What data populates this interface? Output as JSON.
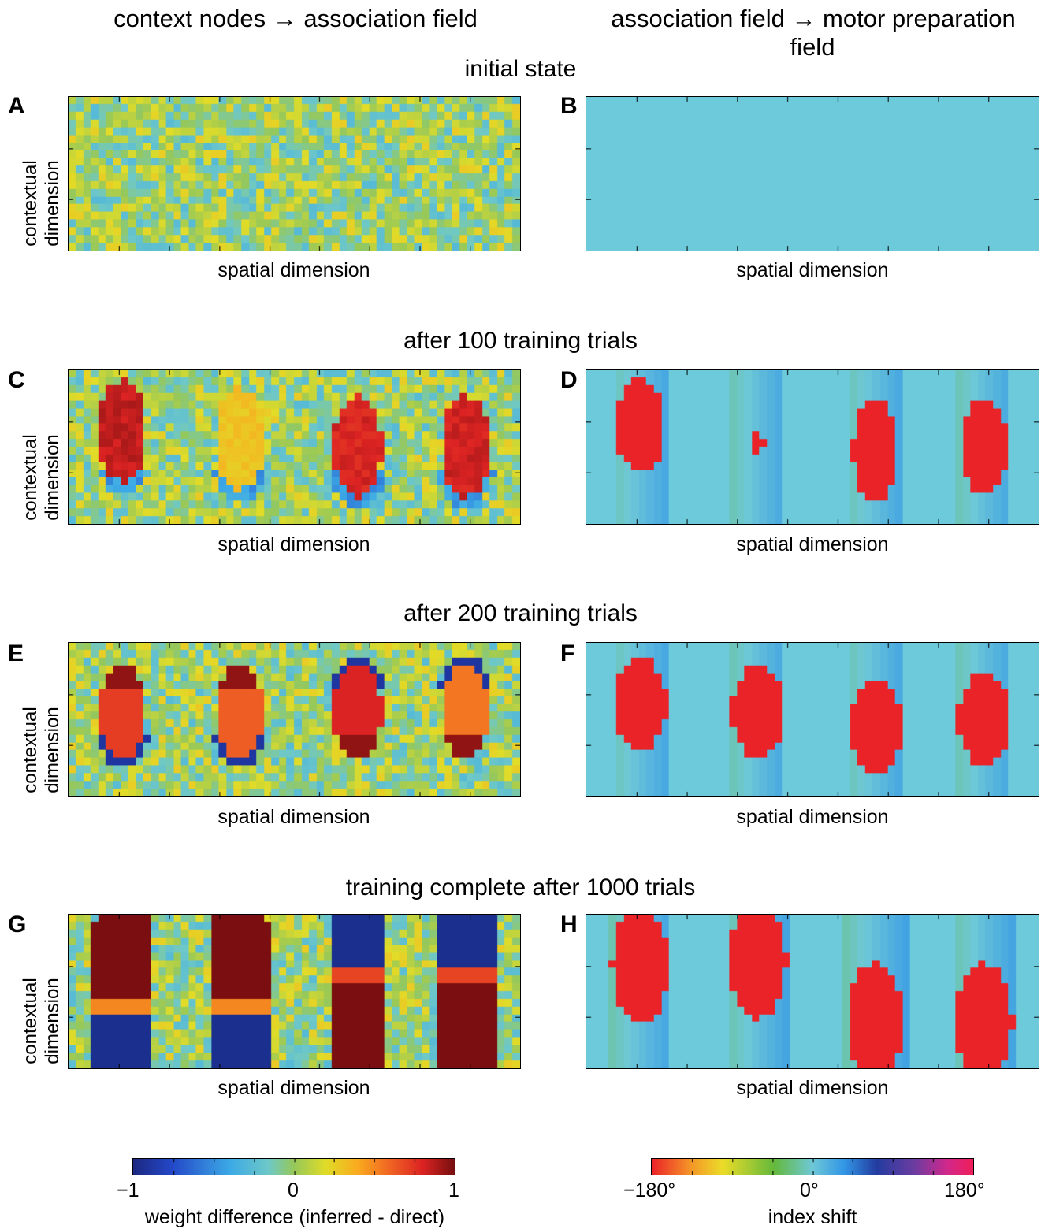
{
  "columns": {
    "left_title": "context nodes → association field",
    "right_title_line1": "association field → motor preparation",
    "right_title_line2": "field"
  },
  "rows": [
    {
      "title": "initial state",
      "left_letter": "A",
      "right_letter": "B"
    },
    {
      "title": "after 100 training trials",
      "left_letter": "C",
      "right_letter": "D"
    },
    {
      "title": "after 200 training trials",
      "left_letter": "E",
      "right_letter": "F"
    },
    {
      "title": "training complete after 1000 trials",
      "left_letter": "G",
      "right_letter": "H"
    }
  ],
  "axis_labels": {
    "x": "spatial dimension",
    "y_line1": "contextual",
    "y_line2": "dimension"
  },
  "colorbars": {
    "left": {
      "min_label": "−1",
      "mid_label": "0",
      "max_label": "1",
      "label": "weight difference (inferred - direct)",
      "colormap": "jet"
    },
    "right": {
      "min_label": "−180°",
      "mid_label": "0°",
      "max_label": "180°",
      "label": "index shift",
      "colormap": "hsv-like"
    }
  },
  "colors": {
    "background_cyan": "#6ccadb",
    "red": "#ea2328",
    "dark_red": "#7a0e10",
    "dark_blue": "#1a2f8e"
  },
  "chart_data": {
    "type": "heatmap",
    "panels": [
      {
        "letter": "A",
        "state": "random weights"
      },
      {
        "letter": "B",
        "state": "uniform zero index shift"
      },
      {
        "letter": "C",
        "state": "four emerging blobs"
      },
      {
        "letter": "D",
        "state": "four red blobs"
      },
      {
        "letter": "E",
        "state": "four blobs, differentiated"
      },
      {
        "letter": "F",
        "state": "four red blobs"
      },
      {
        "letter": "G",
        "state": "upper pair positive top / negative bottom, lower pair negative top / positive bottom"
      },
      {
        "letter": "H",
        "state": "blobs shifted up (left pair) and down (right pair)"
      }
    ],
    "x_range": [
      -1,
      1
    ],
    "index_range": [
      -180,
      180
    ]
  }
}
